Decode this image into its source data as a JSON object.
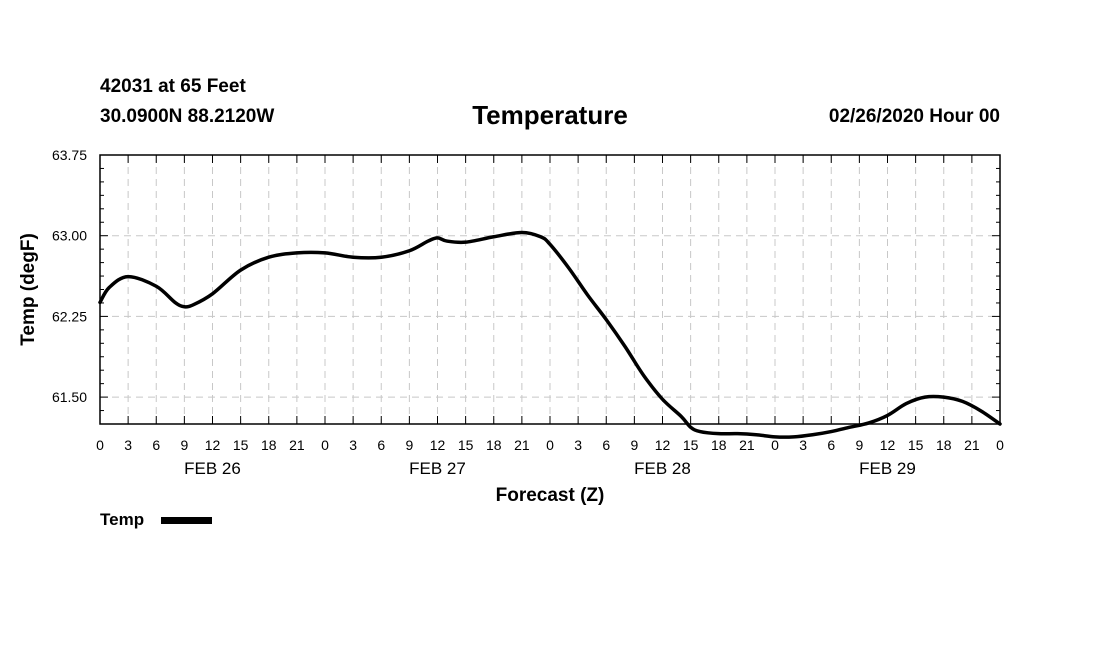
{
  "header": {
    "station": "42031 at 65 Feet",
    "coords": "30.0900N 88.2120W",
    "title": "Temperature",
    "datetime": "02/26/2020 Hour 00"
  },
  "chart_data": {
    "type": "line",
    "title": "Temperature",
    "xlabel": "Forecast (Z)",
    "ylabel": "Temp (degF)",
    "ylim": [
      61.25,
      63.75
    ],
    "yticks": [
      "61.50",
      "62.25",
      "63.00",
      "63.75"
    ],
    "xlim": [
      0,
      96
    ],
    "xtick_labels": [
      "0",
      "3",
      "6",
      "9",
      "12",
      "15",
      "18",
      "21",
      "0",
      "3",
      "6",
      "9",
      "12",
      "15",
      "18",
      "21",
      "0",
      "3",
      "6",
      "9",
      "12",
      "15",
      "18",
      "21",
      "0",
      "3",
      "6",
      "9",
      "12",
      "15",
      "18",
      "21",
      "0"
    ],
    "date_labels": [
      {
        "label": "FEB 26",
        "hour": 12
      },
      {
        "label": "FEB 27",
        "hour": 36
      },
      {
        "label": "FEB 28",
        "hour": 60
      },
      {
        "label": "FEB 29",
        "hour": 84
      }
    ],
    "grid": true,
    "legend": {
      "label": "Temp",
      "position": "bottom-left"
    },
    "series": [
      {
        "name": "Temp",
        "color": "#000000",
        "x": [
          0,
          1,
          3,
          6,
          8,
          9,
          10,
          12,
          15,
          18,
          21,
          24,
          27,
          30,
          33,
          35,
          36,
          37,
          39,
          42,
          45,
          47,
          48,
          50,
          52,
          54,
          56,
          58,
          60,
          62,
          63,
          64,
          66,
          68,
          70,
          72,
          74,
          76,
          78,
          80,
          82,
          84,
          86,
          88,
          90,
          92,
          94,
          96
        ],
        "values": [
          62.38,
          62.52,
          62.62,
          62.53,
          62.38,
          62.34,
          62.36,
          62.46,
          62.68,
          62.8,
          62.84,
          62.84,
          62.8,
          62.8,
          62.86,
          62.95,
          62.98,
          62.95,
          62.94,
          62.99,
          63.03,
          62.99,
          62.92,
          62.7,
          62.45,
          62.22,
          61.97,
          61.7,
          61.48,
          61.32,
          61.22,
          61.18,
          61.16,
          61.16,
          61.15,
          61.13,
          61.13,
          61.15,
          61.18,
          61.22,
          61.26,
          61.33,
          61.44,
          61.5,
          61.5,
          61.46,
          61.37,
          61.25
        ]
      }
    ]
  }
}
